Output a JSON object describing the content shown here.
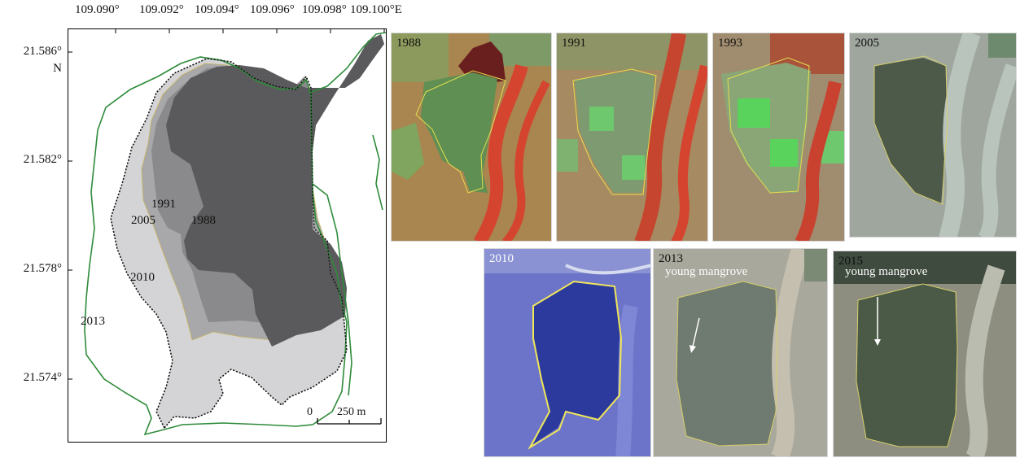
{
  "map": {
    "lon_ticks": [
      "109.090°",
      "109.092°",
      "109.094°",
      "109.096°",
      "109.098°",
      "109.100°E"
    ],
    "lat_ticks": [
      "21.586°",
      "21.582°",
      "21.578°",
      "21.574°"
    ],
    "lat_hemisphere": "N",
    "year_labels": {
      "y1991": "1991",
      "y2005": "2005",
      "y1988": "1988",
      "y2010": "2010",
      "y2013": "2013"
    },
    "scale_bar": {
      "zero": "0",
      "label": "250 m"
    },
    "colors": {
      "area_1988": "#5a5a5c",
      "area_1991": "#8a8a8c",
      "area_2005": "#a8a8aa",
      "area_2010": "#d4d4d6",
      "outline_2013": "#2e8b3a",
      "outline_2010": "#111111"
    }
  },
  "panels": [
    {
      "year": "1988"
    },
    {
      "year": "1991"
    },
    {
      "year": "1993"
    },
    {
      "year": "2005"
    },
    {
      "year": "2010"
    },
    {
      "year": "2013",
      "annotation": "young mangrove"
    },
    {
      "year": "2015",
      "annotation": "young mangrove"
    }
  ]
}
